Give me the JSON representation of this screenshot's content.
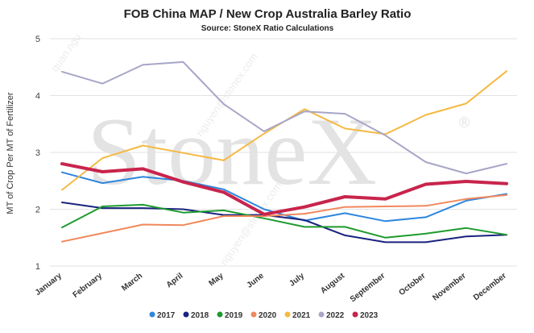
{
  "watermark": {
    "logo": "StoneX",
    "registered": "®",
    "diagonal": [
      "nguyen@stonex.com",
      "quan.ngu",
      "nguyen@stonex.com"
    ]
  },
  "chart_data": {
    "type": "line",
    "title": "FOB China MAP / New Crop Australia Barley Ratio",
    "subtitle": "Source: StoneX Ratio Calculations",
    "xlabel": "",
    "ylabel": "MT of Crop Per MT of Fertilizer",
    "ylim": [
      1,
      5
    ],
    "yticks": [
      "1",
      "2",
      "3",
      "4",
      "5"
    ],
    "grid": true,
    "legend_position": "bottom",
    "categories": [
      "January",
      "February",
      "March",
      "April",
      "May",
      "June",
      "July",
      "August",
      "September",
      "October",
      "November",
      "December"
    ],
    "series": [
      {
        "name": "2017",
        "color": "#2e86de",
        "width": 2,
        "values": [
          2.65,
          2.46,
          2.57,
          2.5,
          2.35,
          2.0,
          1.8,
          1.93,
          1.79,
          1.86,
          2.15,
          2.27
        ]
      },
      {
        "name": "2018",
        "color": "#1a237e",
        "width": 2,
        "values": [
          2.12,
          2.02,
          2.02,
          2.0,
          1.9,
          1.9,
          1.81,
          1.54,
          1.42,
          1.42,
          1.52,
          1.55
        ]
      },
      {
        "name": "2019",
        "color": "#1e9b2e",
        "width": 2,
        "values": [
          1.68,
          2.05,
          2.08,
          1.94,
          1.98,
          1.84,
          1.69,
          1.69,
          1.5,
          1.57,
          1.67,
          1.55
        ]
      },
      {
        "name": "2020",
        "color": "#f0885c",
        "width": 2,
        "values": [
          1.43,
          1.58,
          1.73,
          1.72,
          1.88,
          1.88,
          1.92,
          2.04,
          2.05,
          2.06,
          2.18,
          2.25
        ]
      },
      {
        "name": "2021",
        "color": "#f5b942",
        "width": 2,
        "values": [
          2.34,
          2.9,
          3.12,
          2.99,
          2.86,
          3.33,
          3.76,
          3.42,
          3.32,
          3.66,
          3.86,
          4.43
        ]
      },
      {
        "name": "2022",
        "color": "#a7a6c8",
        "width": 2,
        "values": [
          4.42,
          4.21,
          4.54,
          4.59,
          3.85,
          3.37,
          3.72,
          3.68,
          3.3,
          2.83,
          2.63,
          2.8
        ]
      },
      {
        "name": "2023",
        "color": "#c8244c",
        "width": 4,
        "values": [
          2.8,
          2.66,
          2.71,
          2.48,
          2.3,
          1.91,
          2.04,
          2.22,
          2.18,
          2.44,
          2.49,
          2.45
        ]
      }
    ]
  }
}
